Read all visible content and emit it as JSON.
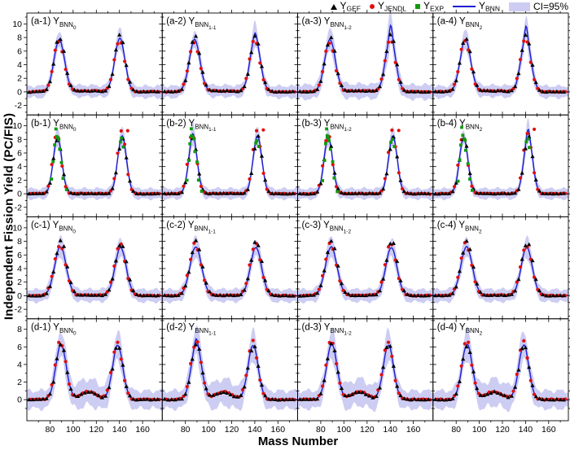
{
  "legend": {
    "items": [
      {
        "id": "gef",
        "marker": "triangle",
        "base": "Y",
        "sub": "GEF"
      },
      {
        "id": "jendl",
        "marker": "circle",
        "base": "Y",
        "sub": "JENDL"
      },
      {
        "id": "exp",
        "marker": "square",
        "base": "Y",
        "sub": "EXP"
      },
      {
        "id": "bnn",
        "marker": "line",
        "base": "Y",
        "sub": "BNN"
      },
      {
        "id": "ci",
        "marker": "band",
        "label": "CI=95%"
      }
    ]
  },
  "chart_data": {
    "type": "line",
    "title": "",
    "xlabel": "Mass Number",
    "ylabel": "Independent Fission Yield (PC/FIS)",
    "x_range": [
      60,
      177
    ],
    "x_ticks": [
      80,
      100,
      120,
      140,
      160
    ],
    "x_minor_ticks": [
      70,
      90,
      110,
      130,
      150,
      170
    ],
    "legend_entries": [
      "Y_GEF",
      "Y_JENDL",
      "Y_EXP",
      "Y_BNN",
      "CI=95%"
    ],
    "legend_position": "top-right",
    "grid": false,
    "colors": {
      "gef": "#000000",
      "jendl": "#e01010",
      "exp": "#0f9b0f",
      "bnn": "#1c1ccf",
      "band": "#cdcdf3"
    },
    "rows": [
      {
        "id": "a",
        "ylim": [
          -3.4,
          11.6
        ],
        "yticks": [
          -2,
          0,
          2,
          4,
          6,
          8,
          10
        ],
        "yticks_minor": [
          -3,
          -1,
          1,
          3,
          5,
          7,
          9,
          11
        ],
        "peaks": [
          {
            "c": 88.0,
            "h": 7.7,
            "w": 4.6
          },
          {
            "c": 140.3,
            "h": 7.9,
            "w": 4.4
          }
        ],
        "valley": {
          "c": 112,
          "h": 0.13,
          "w": 14,
          "p": 4
        },
        "band": {
          "base": 0.85,
          "peak_add": 0.5
        },
        "gef_scale": 1.05,
        "jendl_scale": 0.97,
        "gef_shift": 0.3,
        "jendl_shift": -0.4
      },
      {
        "id": "b",
        "ylim": [
          -3.4,
          11.6
        ],
        "yticks": [
          -2,
          0,
          2,
          4,
          6,
          8,
          10
        ],
        "yticks_minor": [
          -3,
          -1,
          1,
          3,
          5,
          7,
          9,
          11
        ],
        "peaks": [
          {
            "c": 86.5,
            "h": 8.3,
            "w": 3.7
          },
          {
            "c": 142.3,
            "h": 8.5,
            "w": 3.8
          }
        ],
        "valley": {
          "c": 114,
          "h": 0.03,
          "w": 16,
          "p": 4
        },
        "band": {
          "base": 0.75,
          "peak_add": 0.5
        },
        "gef_scale": 0.99,
        "jendl_scale": 1.07,
        "gef_shift": 0.2,
        "jendl_shift": -0.5,
        "extra_jendl": [
          [
            147.5,
            9.4
          ]
        ],
        "exp_points": [
          [
            81.5,
            2.0
          ],
          [
            83,
            4.8
          ],
          [
            84,
            7.2
          ],
          [
            85,
            9.6
          ],
          [
            85.5,
            8.6
          ],
          [
            86.5,
            8.2
          ],
          [
            87.5,
            7.9
          ],
          [
            88.5,
            6.4
          ],
          [
            90,
            4.6
          ],
          [
            91.5,
            2.2
          ],
          [
            94,
            0.5
          ],
          [
            140.5,
            7.6
          ],
          [
            142,
            8.0
          ],
          [
            143.5,
            6.9
          ]
        ]
      },
      {
        "id": "c",
        "ylim": [
          -3.4,
          11.6
        ],
        "yticks": [
          -2,
          0,
          2,
          4,
          6,
          8,
          10
        ],
        "yticks_minor": [
          -3,
          -1,
          1,
          3,
          5,
          7,
          9,
          11
        ],
        "peaks": [
          {
            "c": 89.0,
            "h": 7.2,
            "w": 5.0
          },
          {
            "c": 141.0,
            "h": 7.1,
            "w": 4.8
          }
        ],
        "valley": {
          "c": 115,
          "h": 0.05,
          "w": 14,
          "p": 4
        },
        "band": {
          "base": 0.9,
          "peak_add": 0.55
        },
        "gef_scale": 1.12,
        "jendl_scale": 1.06,
        "gef_shift": 0.4,
        "jendl_shift": -0.5
      },
      {
        "id": "d",
        "ylim": [
          -2.4,
          9.2
        ],
        "yticks": [
          0,
          2,
          4,
          6,
          8
        ],
        "yticks_minor": [
          -1,
          1,
          3,
          5,
          7,
          9
        ],
        "peaks": [
          {
            "c": 89.5,
            "h": 6.3,
            "w": 4.5
          },
          {
            "c": 138.5,
            "h": 6.2,
            "w": 4.4
          }
        ],
        "valley": {
          "c": 113,
          "h": 0.88,
          "w": 10,
          "p": 2
        },
        "band": {
          "base": 1.0,
          "peak_add": 0.5,
          "valley_add": {
            "c": 113,
            "h": 0.5,
            "w": 14
          }
        },
        "gef_scale": 1.0,
        "jendl_scale": 1.05,
        "gef_shift": 0.2,
        "jendl_shift": -0.4
      }
    ],
    "panel_base": {
      "base": "Y",
      "sub": "BNN"
    },
    "panels": [
      {
        "tag": "(a-1)",
        "subsub": "0",
        "row": 0
      },
      {
        "tag": "(a-2)",
        "subsub": "1-1",
        "row": 0,
        "spike": {
          "c": 140.3,
          "h": 0.7,
          "w": 1.4
        }
      },
      {
        "tag": "(a-3)",
        "subsub": "1-2",
        "row": 0,
        "spike": {
          "c": 140.6,
          "h": 1.9,
          "w": 1.2
        },
        "band_scale": 1.22
      },
      {
        "tag": "(a-4)",
        "subsub": "2",
        "row": 0,
        "spike": {
          "c": 140.6,
          "h": 1.85,
          "w": 1.1
        }
      },
      {
        "tag": "(b-1)",
        "subsub": "0",
        "row": 1
      },
      {
        "tag": "(b-2)",
        "subsub": "1-1",
        "row": 1,
        "spike": {
          "c": 86.5,
          "h": 0.6,
          "w": 1.2
        }
      },
      {
        "tag": "(b-3)",
        "subsub": "1-2",
        "row": 1
      },
      {
        "tag": "(b-4)",
        "subsub": "2",
        "row": 1,
        "spike": {
          "c": 142.3,
          "h": 1.0,
          "w": 1.1
        }
      },
      {
        "tag": "(c-1)",
        "subsub": "0",
        "row": 2
      },
      {
        "tag": "(c-2)",
        "subsub": "1-1",
        "row": 2
      },
      {
        "tag": "(c-3)",
        "subsub": "1-2",
        "row": 2
      },
      {
        "tag": "(c-4)",
        "subsub": "2",
        "row": 2
      },
      {
        "tag": "(d-1)",
        "subsub": "0",
        "row": 3
      },
      {
        "tag": "(d-2)",
        "subsub": "1-1",
        "row": 3,
        "spike": {
          "c": 89.5,
          "h": 0.65,
          "w": 1.1
        }
      },
      {
        "tag": "(d-3)",
        "subsub": "1-2",
        "row": 3
      },
      {
        "tag": "(d-4)",
        "subsub": "2",
        "row": 3
      }
    ]
  }
}
